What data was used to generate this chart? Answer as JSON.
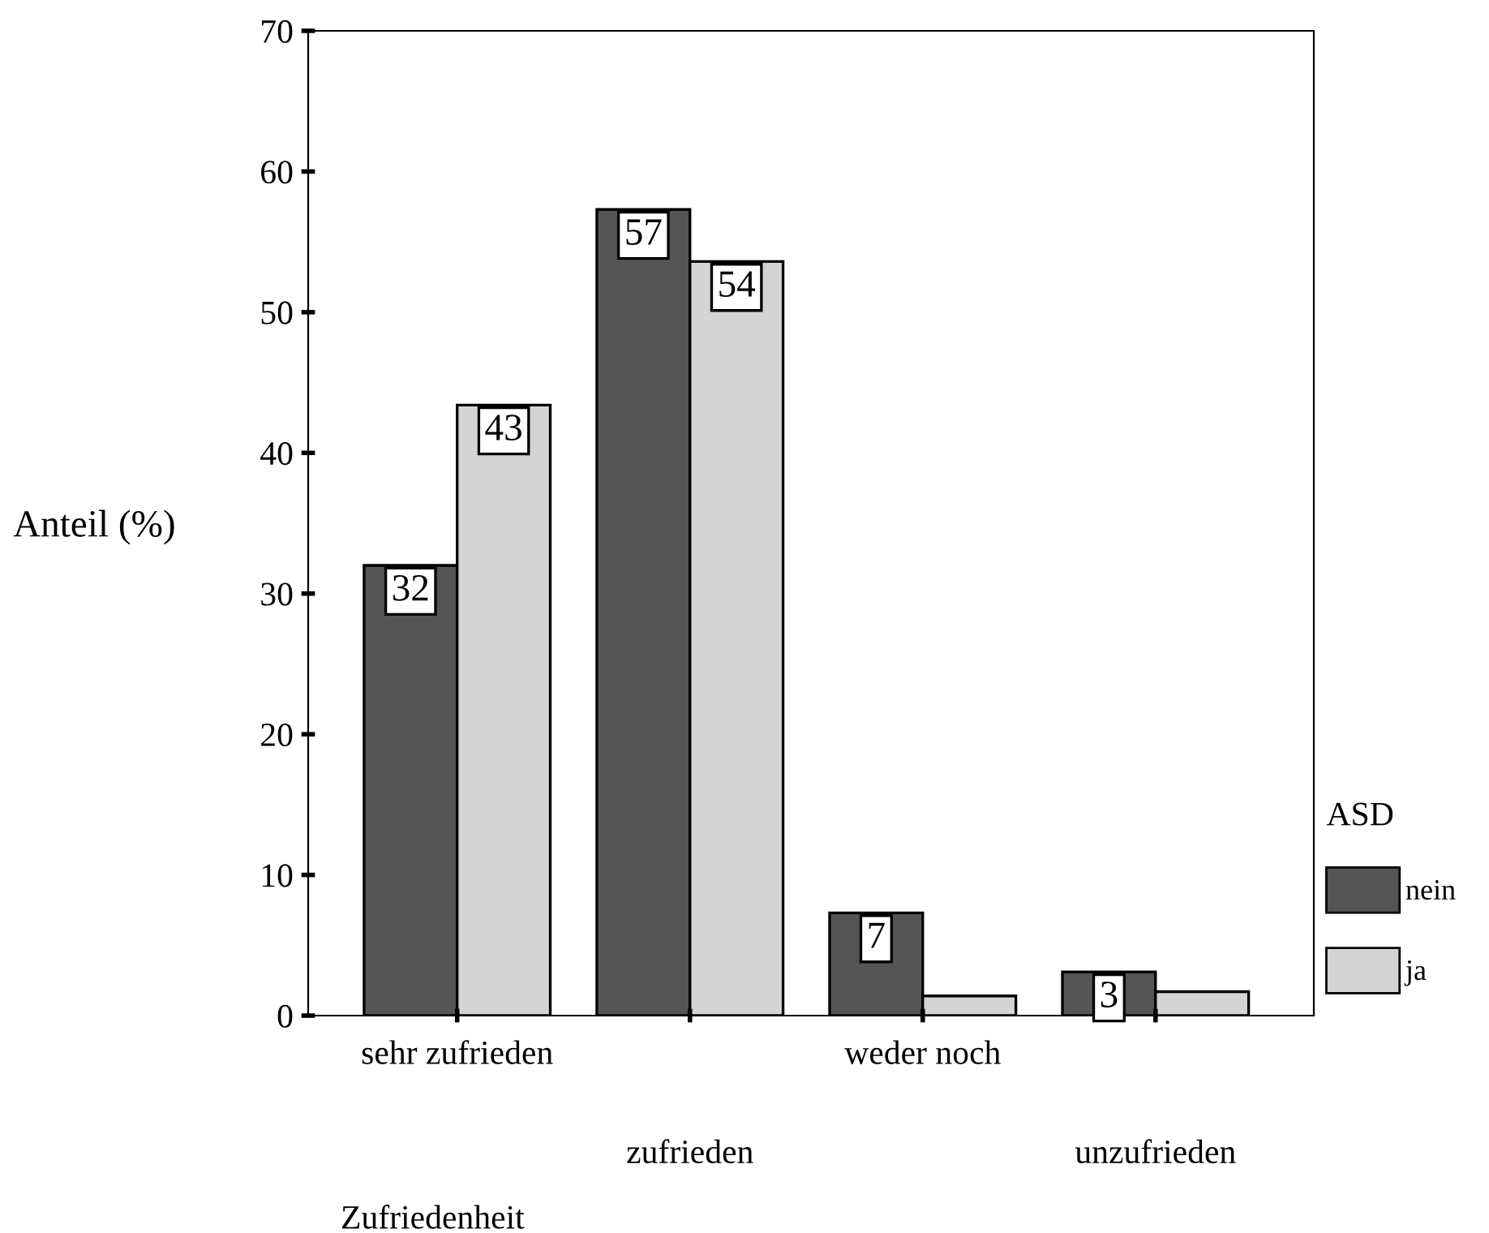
{
  "chart_data": {
    "type": "bar",
    "xlabel": "Zufriedenheit",
    "ylabel": "Anteil (%)",
    "legend_title": "ASD",
    "categories": [
      "sehr zufrieden",
      "zufrieden",
      "weder noch",
      "unzufrieden"
    ],
    "series": [
      {
        "name": "nein",
        "color": "#555555",
        "values": [
          32,
          57.3,
          7.3,
          3.1
        ],
        "value_labels": [
          "32",
          "57",
          "7",
          "3"
        ]
      },
      {
        "name": "ja",
        "color": "#d4d4d4",
        "values": [
          43.4,
          53.6,
          1.4,
          1.7
        ],
        "value_labels": [
          "43",
          "54",
          null,
          null
        ]
      }
    ],
    "ylim": [
      0,
      70
    ],
    "yticks": [
      0,
      10,
      20,
      30,
      40,
      50,
      60,
      70
    ],
    "grid": false,
    "legend": "right"
  }
}
